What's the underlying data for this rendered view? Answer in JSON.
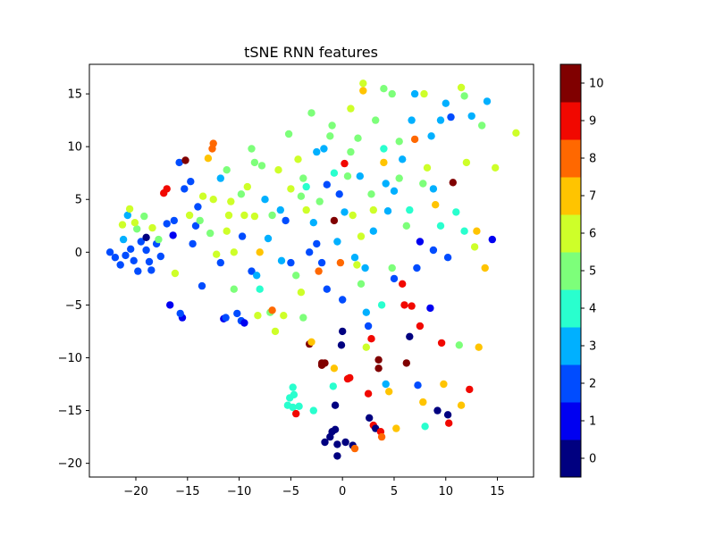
{
  "chart_data": {
    "type": "scatter",
    "title": "tSNE RNN features",
    "xlabel": "",
    "ylabel": "",
    "xlim": [
      -24.5,
      18.5
    ],
    "ylim": [
      -21.3,
      17.8
    ],
    "x_ticks": [
      -20,
      -15,
      -10,
      -5,
      0,
      5,
      10,
      15
    ],
    "y_ticks": [
      -20,
      -15,
      -10,
      -5,
      0,
      5,
      10,
      15
    ],
    "grid": false,
    "colorbar": {
      "cmap": "jet",
      "range": [
        -0.5,
        10.5
      ],
      "ticks": [
        0,
        1,
        2,
        3,
        4,
        5,
        6,
        7,
        8,
        9,
        10
      ],
      "colors": [
        "#000080",
        "#0000f1",
        "#004cff",
        "#00b0ff",
        "#29ffce",
        "#7dff7a",
        "#ceff29",
        "#ffc400",
        "#ff6800",
        "#f10800",
        "#800000"
      ]
    },
    "points": [
      [
        -22.5,
        0.0,
        2
      ],
      [
        -22.0,
        -0.5,
        2
      ],
      [
        -21.5,
        -1.2,
        2
      ],
      [
        -21.0,
        -0.3,
        2
      ],
      [
        -20.5,
        0.3,
        2
      ],
      [
        -20.2,
        -0.8,
        2
      ],
      [
        -19.8,
        -1.8,
        2
      ],
      [
        -19.5,
        1.0,
        2
      ],
      [
        -19.0,
        0.2,
        2
      ],
      [
        -18.7,
        -0.9,
        2
      ],
      [
        -18.5,
        -1.7,
        2
      ],
      [
        -18.0,
        0.8,
        2
      ],
      [
        -17.6,
        -0.4,
        2
      ],
      [
        -21.2,
        1.2,
        3
      ],
      [
        -20.8,
        3.5,
        3
      ],
      [
        -19.9,
        2.2,
        5
      ],
      [
        -19.2,
        3.4,
        5
      ],
      [
        -20.1,
        2.8,
        6
      ],
      [
        -20.6,
        4.1,
        6
      ],
      [
        -21.3,
        2.6,
        6
      ],
      [
        -18.4,
        2.3,
        6
      ],
      [
        -19.0,
        1.4,
        0
      ],
      [
        -17.3,
        5.6,
        9
      ],
      [
        -17.0,
        6.0,
        9
      ],
      [
        -17.0,
        2.7,
        2
      ],
      [
        -16.4,
        1.6,
        1
      ],
      [
        -16.3,
        3.0,
        2
      ],
      [
        -16.7,
        -5.0,
        1
      ],
      [
        -16.2,
        -2.0,
        6
      ],
      [
        -15.5,
        -6.2,
        1
      ],
      [
        -15.7,
        -5.8,
        2
      ],
      [
        -15.8,
        8.5,
        2
      ],
      [
        -15.2,
        8.7,
        10
      ],
      [
        -15.3,
        6.0,
        2
      ],
      [
        -14.7,
        6.7,
        2
      ],
      [
        -14.8,
        3.5,
        6
      ],
      [
        -14.2,
        2.5,
        2
      ],
      [
        -14.5,
        0.8,
        2
      ],
      [
        -14.0,
        4.3,
        2
      ],
      [
        -13.6,
        -3.2,
        2
      ],
      [
        -13.5,
        5.3,
        6
      ],
      [
        -13.0,
        8.9,
        7
      ],
      [
        -12.6,
        9.8,
        8
      ],
      [
        -12.5,
        10.3,
        8
      ],
      [
        -12.5,
        5.0,
        6
      ],
      [
        -12.2,
        -0.2,
        6
      ],
      [
        -11.8,
        7.0,
        3
      ],
      [
        -11.8,
        -1.0,
        2
      ],
      [
        -11.5,
        -6.3,
        1
      ],
      [
        -11.3,
        -6.2,
        2
      ],
      [
        -11.2,
        2.0,
        6
      ],
      [
        -11.0,
        3.5,
        6
      ],
      [
        -10.8,
        4.8,
        6
      ],
      [
        -10.5,
        0.0,
        6
      ],
      [
        -10.5,
        -3.5,
        5
      ],
      [
        -10.2,
        -5.8,
        2
      ],
      [
        -9.8,
        -6.5,
        2
      ],
      [
        -9.5,
        -6.7,
        1
      ],
      [
        -9.7,
        1.5,
        2
      ],
      [
        -9.5,
        3.5,
        6
      ],
      [
        -9.2,
        6.2,
        6
      ],
      [
        -8.8,
        9.8,
        5
      ],
      [
        -8.5,
        8.5,
        5
      ],
      [
        -8.5,
        3.4,
        6
      ],
      [
        -8.8,
        -1.8,
        2
      ],
      [
        -8.3,
        -2.2,
        3
      ],
      [
        -8.0,
        0.0,
        7
      ],
      [
        -8.2,
        -6.0,
        6
      ],
      [
        -7.5,
        5.0,
        3
      ],
      [
        -7.2,
        1.3,
        3
      ],
      [
        -7.0,
        -5.7,
        5
      ],
      [
        -6.8,
        -5.5,
        8
      ],
      [
        -6.5,
        -7.5,
        6
      ],
      [
        -6.2,
        7.8,
        6
      ],
      [
        -6.0,
        4.0,
        3
      ],
      [
        -5.9,
        -0.8,
        3
      ],
      [
        -5.7,
        -6.0,
        6
      ],
      [
        -5.5,
        3.0,
        2
      ],
      [
        -5.2,
        11.2,
        5
      ],
      [
        -5.0,
        6.0,
        6
      ],
      [
        -5.0,
        -1.0,
        2
      ],
      [
        -4.8,
        -12.8,
        4
      ],
      [
        -4.7,
        -13.5,
        4
      ],
      [
        -5.3,
        -14.5,
        4
      ],
      [
        -5.1,
        -13.8,
        4
      ],
      [
        -4.8,
        -14.7,
        4
      ],
      [
        -4.5,
        -15.3,
        9
      ],
      [
        -4.2,
        -14.6,
        4
      ],
      [
        -4.3,
        8.8,
        6
      ],
      [
        -4.0,
        5.3,
        5
      ],
      [
        -4.0,
        -3.8,
        6
      ],
      [
        -3.8,
        -6.2,
        5
      ],
      [
        -3.5,
        4.0,
        6
      ],
      [
        -3.2,
        -8.7,
        10
      ],
      [
        -3.0,
        -8.5,
        7
      ],
      [
        -3.2,
        0.0,
        2
      ],
      [
        -3.0,
        13.2,
        5
      ],
      [
        -2.8,
        -15.0,
        4
      ],
      [
        -2.5,
        9.5,
        3
      ],
      [
        -2.5,
        0.8,
        2
      ],
      [
        -2.3,
        -1.8,
        8
      ],
      [
        -2.0,
        -10.7,
        10
      ],
      [
        -2.0,
        -10.5,
        10
      ],
      [
        -1.7,
        -10.5,
        10
      ],
      [
        -1.7,
        -18.0,
        0
      ],
      [
        -1.5,
        -3.5,
        2
      ],
      [
        -1.5,
        6.4,
        2
      ],
      [
        -1.2,
        11.0,
        5
      ],
      [
        -1.2,
        -17.5,
        0
      ],
      [
        -1.0,
        -17.0,
        0
      ],
      [
        -0.8,
        3.0,
        10
      ],
      [
        -0.8,
        -11.0,
        7
      ],
      [
        -0.9,
        -12.7,
        4
      ],
      [
        -0.7,
        -14.5,
        0
      ],
      [
        -0.7,
        -16.8,
        0
      ],
      [
        -0.5,
        -18.2,
        0
      ],
      [
        -0.5,
        -19.3,
        0
      ],
      [
        -0.3,
        5.5,
        2
      ],
      [
        -0.2,
        -1.0,
        8
      ],
      [
        -0.1,
        -8.8,
        0
      ],
      [
        0.0,
        -7.5,
        0
      ],
      [
        0.2,
        8.4,
        9
      ],
      [
        0.3,
        -18.0,
        0
      ],
      [
        0.5,
        7.2,
        5
      ],
      [
        0.5,
        -12.0,
        9
      ],
      [
        0.7,
        -11.9,
        9
      ],
      [
        0.8,
        13.6,
        6
      ],
      [
        1.0,
        3.5,
        6
      ],
      [
        1.0,
        -18.3,
        0
      ],
      [
        1.2,
        -18.6,
        8
      ],
      [
        1.4,
        -1.2,
        6
      ],
      [
        1.7,
        7.2,
        3
      ],
      [
        1.8,
        1.5,
        6
      ],
      [
        2.0,
        15.3,
        7
      ],
      [
        2.0,
        16.0,
        6
      ],
      [
        2.3,
        -5.7,
        3
      ],
      [
        2.3,
        -9.0,
        6
      ],
      [
        2.5,
        -13.4,
        9
      ],
      [
        2.6,
        -15.7,
        0
      ],
      [
        2.8,
        -8.2,
        9
      ],
      [
        3.0,
        4.0,
        6
      ],
      [
        3.0,
        -16.4,
        9
      ],
      [
        3.2,
        -16.7,
        0
      ],
      [
        3.5,
        -10.2,
        10
      ],
      [
        3.5,
        -11.0,
        10
      ],
      [
        3.7,
        -17.0,
        9
      ],
      [
        3.8,
        -17.5,
        8
      ],
      [
        4.0,
        15.5,
        5
      ],
      [
        4.0,
        8.5,
        7
      ],
      [
        4.2,
        -12.5,
        3
      ],
      [
        4.4,
        3.9,
        3
      ],
      [
        4.5,
        -13.2,
        7
      ],
      [
        4.8,
        15.0,
        5
      ],
      [
        5.0,
        5.8,
        3
      ],
      [
        5.2,
        -16.7,
        7
      ],
      [
        5.5,
        10.5,
        5
      ],
      [
        5.8,
        -3.0,
        9
      ],
      [
        6.0,
        -5.0,
        9
      ],
      [
        6.2,
        -10.5,
        10
      ],
      [
        6.5,
        -8.0,
        0
      ],
      [
        6.7,
        -5.1,
        9
      ],
      [
        6.7,
        12.5,
        3
      ],
      [
        7.0,
        15.0,
        3
      ],
      [
        7.0,
        10.7,
        8
      ],
      [
        7.3,
        -12.6,
        2
      ],
      [
        7.5,
        1.0,
        1
      ],
      [
        7.5,
        -7.0,
        9
      ],
      [
        7.8,
        -14.2,
        7
      ],
      [
        7.9,
        15.0,
        6
      ],
      [
        8.0,
        -16.5,
        4
      ],
      [
        8.2,
        8.0,
        6
      ],
      [
        8.5,
        -5.3,
        1
      ],
      [
        8.8,
        6.0,
        3
      ],
      [
        9.0,
        4.5,
        7
      ],
      [
        9.2,
        -15.0,
        0
      ],
      [
        9.5,
        12.5,
        3
      ],
      [
        9.6,
        -8.6,
        9
      ],
      [
        9.8,
        -12.5,
        7
      ],
      [
        10.0,
        14.1,
        3
      ],
      [
        10.2,
        -15.4,
        0
      ],
      [
        10.3,
        -16.2,
        9
      ],
      [
        10.5,
        12.8,
        2
      ],
      [
        10.7,
        6.6,
        10
      ],
      [
        11.0,
        3.8,
        4
      ],
      [
        11.3,
        -8.8,
        5
      ],
      [
        11.5,
        -14.5,
        7
      ],
      [
        11.5,
        15.6,
        6
      ],
      [
        11.8,
        14.8,
        5
      ],
      [
        12.0,
        8.5,
        6
      ],
      [
        12.3,
        -13.0,
        9
      ],
      [
        12.5,
        12.9,
        3
      ],
      [
        12.8,
        0.5,
        6
      ],
      [
        13.0,
        2.0,
        7
      ],
      [
        13.2,
        -9.0,
        7
      ],
      [
        13.5,
        12.0,
        5
      ],
      [
        13.8,
        -1.5,
        7
      ],
      [
        14.0,
        14.3,
        3
      ],
      [
        14.5,
        1.2,
        1
      ],
      [
        14.8,
        8.0,
        6
      ],
      [
        16.8,
        11.3,
        6
      ],
      [
        -6.8,
        3.5,
        5
      ],
      [
        -7.8,
        8.2,
        5
      ],
      [
        -3.8,
        7.0,
        5
      ],
      [
        -2.2,
        4.8,
        5
      ],
      [
        0.8,
        9.5,
        5
      ],
      [
        1.5,
        10.8,
        5
      ],
      [
        3.2,
        12.5,
        5
      ],
      [
        5.5,
        7.0,
        5
      ],
      [
        6.2,
        2.5,
        5
      ],
      [
        7.8,
        6.5,
        5
      ],
      [
        -1.0,
        12.0,
        5
      ],
      [
        2.8,
        5.5,
        5
      ],
      [
        -4.5,
        -2.2,
        5
      ],
      [
        1.8,
        -3.0,
        5
      ],
      [
        4.8,
        -1.5,
        5
      ],
      [
        -2.8,
        2.8,
        3
      ],
      [
        -0.5,
        1.0,
        3
      ],
      [
        1.2,
        -0.5,
        3
      ],
      [
        3.0,
        2.0,
        3
      ],
      [
        4.2,
        6.5,
        3
      ],
      [
        5.8,
        8.8,
        3
      ],
      [
        8.6,
        11.0,
        3
      ],
      [
        -1.8,
        9.8,
        3
      ],
      [
        0.2,
        3.8,
        3
      ],
      [
        2.2,
        -1.5,
        3
      ],
      [
        -3.5,
        6.2,
        4
      ],
      [
        -0.8,
        7.5,
        4
      ],
      [
        4.0,
        9.8,
        4
      ],
      [
        6.5,
        4.0,
        4
      ],
      [
        9.5,
        2.5,
        4
      ],
      [
        11.8,
        2.0,
        4
      ],
      [
        -8.0,
        -3.5,
        4
      ],
      [
        3.8,
        -5.0,
        4
      ],
      [
        -2.0,
        -1.0,
        2
      ],
      [
        0.0,
        -4.5,
        2
      ],
      [
        2.5,
        -7.0,
        2
      ],
      [
        5.0,
        -2.5,
        2
      ],
      [
        7.2,
        -1.5,
        2
      ],
      [
        8.8,
        0.2,
        2
      ],
      [
        10.2,
        -0.5,
        2
      ],
      [
        -12.8,
        1.8,
        5
      ],
      [
        -13.8,
        3.0,
        5
      ],
      [
        -17.8,
        1.2,
        5
      ],
      [
        -9.8,
        5.5,
        5
      ],
      [
        -11.2,
        7.8,
        5
      ]
    ]
  }
}
